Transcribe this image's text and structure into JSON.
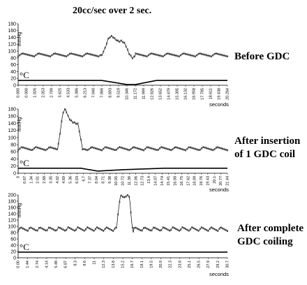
{
  "title": "20cc/sec over 2 sec.",
  "chart_data": [
    {
      "type": "line",
      "panel_label": "Before GDC",
      "ylabel": "mmHg",
      "temp_label": "°C",
      "xlabel": "seconds",
      "ylim": [
        0,
        180
      ],
      "yticks": [
        0,
        20,
        40,
        60,
        80,
        100,
        120,
        140,
        160,
        180
      ],
      "xticks": [
        "0.000",
        "0.000",
        "1.026",
        "2.053",
        "2.799",
        "3.625",
        "4.533",
        "5.386",
        "6.213",
        "7.040",
        "7.866",
        "8.693",
        "9.519",
        "10.346",
        "11.172",
        "11.999",
        "12.826",
        "13.652",
        "14.479",
        "15.305",
        "16.132",
        "16.958",
        "17.785",
        "18.611",
        "19.438",
        "20.264"
      ],
      "pressure_baseline": 88,
      "pressure_amplitude": 6,
      "pressure_cycles": 13,
      "pressure_peak": {
        "start": 0.4,
        "end": 0.56,
        "max": 144,
        "shape": [
          88,
          110,
          138,
          144,
          135,
          128,
          130,
          120,
          95,
          80,
          84
        ]
      },
      "temperature": [
        [
          0,
          14
        ],
        [
          0.4,
          14
        ],
        [
          0.48,
          6
        ],
        [
          0.52,
          2
        ],
        [
          0.56,
          2
        ],
        [
          0.66,
          14
        ],
        [
          1,
          14
        ]
      ]
    },
    {
      "type": "line",
      "panel_label": "After insertion of 1 GDC coil",
      "ylabel": "mmHg",
      "temp_label": "°C",
      "xlabel": "seconds",
      "ylim": [
        0,
        180
      ],
      "yticks": [
        0,
        20,
        40,
        60,
        80,
        100,
        120,
        140,
        160,
        180
      ],
      "xticks": [
        "0",
        "0.67",
        "1.34",
        "2.01",
        "2.68",
        "3.35",
        "4.02",
        "4.69",
        "5.36",
        "6.03",
        "6.7",
        "7.37",
        "8.04",
        "8.71",
        "9.38",
        "10.05",
        "10.72",
        "11.39",
        "12.06",
        "12.73",
        "13.4",
        "14.07",
        "14.74",
        "15.41",
        "16.08",
        "16.75",
        "17.42",
        "18.09",
        "18.76",
        "19.43",
        "20.1",
        "20.77",
        "21.44"
      ],
      "pressure_baseline": 68,
      "pressure_amplitude": 6,
      "pressure_cycles": 15,
      "pressure_peak": {
        "start": 0.19,
        "end": 0.31,
        "max": 180,
        "shape": [
          72,
          120,
          170,
          180,
          160,
          148,
          143,
          140,
          138,
          100,
          60
        ]
      },
      "temperature": [
        [
          0,
          14
        ],
        [
          0.3,
          14
        ],
        [
          0.38,
          6
        ],
        [
          0.5,
          10
        ],
        [
          0.7,
          14
        ],
        [
          1,
          14
        ]
      ]
    },
    {
      "type": "line",
      "panel_label": "After complete GDC coiling",
      "ylabel": "mmHg",
      "temp_label": "°C",
      "xlabel": "seconds",
      "ylim": [
        0,
        200
      ],
      "yticks": [
        0,
        20,
        40,
        60,
        80,
        100,
        120,
        140,
        160,
        180,
        200
      ],
      "xticks": [
        "0.00",
        "1.44",
        "2.74",
        "4.14",
        "5.48",
        "6.87",
        "8.3",
        "9.6",
        "11",
        "12.3",
        "13.8",
        "15.2",
        "16.7",
        "18.1",
        "19.5",
        "20.9",
        "22.3",
        "23.8",
        "25.1",
        "26.5",
        "27.9",
        "29.2",
        "30.7"
      ],
      "pressure_baseline": 90,
      "pressure_amplitude": 8,
      "pressure_cycles": 22,
      "pressure_peak": {
        "start": 0.47,
        "end": 0.55,
        "max": 198,
        "shape": [
          90,
          150,
          195,
          198,
          190,
          196,
          198,
          195,
          120,
          80
        ]
      },
      "temperature": [
        [
          0,
          18
        ],
        [
          1,
          18
        ]
      ]
    }
  ]
}
